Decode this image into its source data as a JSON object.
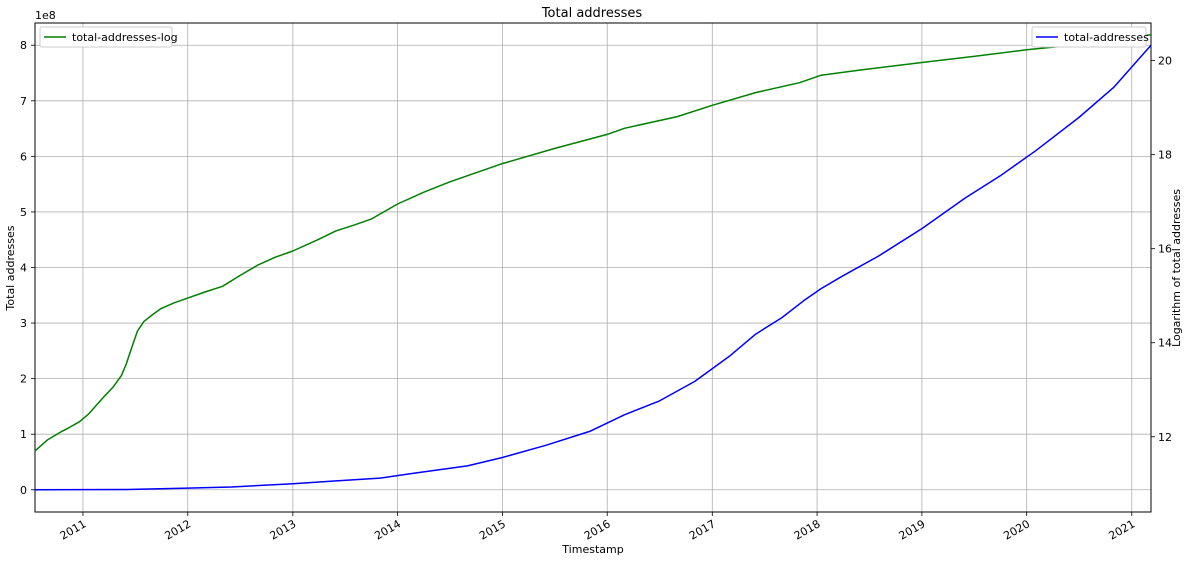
{
  "chart_data": {
    "type": "line",
    "title": "Total addresses",
    "xlabel": "Timestamp",
    "ylabel_left": "Total addresses",
    "ylabel_right": "Logarithm of total addresses",
    "y_left_exponent_label": "1e8",
    "x_range": [
      "2010-07-18",
      "2021-03-09"
    ],
    "x_ticks": [
      "2011",
      "2012",
      "2013",
      "2014",
      "2015",
      "2016",
      "2017",
      "2018",
      "2019",
      "2020",
      "2021"
    ],
    "y_left_ticks": [
      "0",
      "1",
      "2",
      "3",
      "4",
      "5",
      "6",
      "7",
      "8"
    ],
    "y_left_range": [
      -0.4,
      8.4
    ],
    "y_right_ticks": [
      "12",
      "14",
      "16",
      "18",
      "20"
    ],
    "y_right_range": [
      10.4,
      20.8
    ],
    "grid": true,
    "legend_left": "top-left",
    "legend_right": "top-right",
    "colors": {
      "log_series": "#008000",
      "linear_series": "#0000ff"
    },
    "series": [
      {
        "name": "total-addresses-log",
        "axis": "right",
        "color": "#008000",
        "points": [
          [
            "2010-07-18",
            11.7
          ],
          [
            "2010-09-01",
            11.94
          ],
          [
            "2010-10-15",
            12.1
          ],
          [
            "2010-11-15",
            12.2
          ],
          [
            "2010-12-20",
            12.32
          ],
          [
            "2011-01-20",
            12.48
          ],
          [
            "2011-02-15",
            12.66
          ],
          [
            "2011-03-15",
            12.85
          ],
          [
            "2011-04-15",
            13.05
          ],
          [
            "2011-05-15",
            13.3
          ],
          [
            "2011-06-01",
            13.55
          ],
          [
            "2011-06-20",
            13.9
          ],
          [
            "2011-07-10",
            14.25
          ],
          [
            "2011-08-01",
            14.45
          ],
          [
            "2011-09-01",
            14.6
          ],
          [
            "2011-10-01",
            14.73
          ],
          [
            "2011-11-15",
            14.85
          ],
          [
            "2012-01-01",
            14.95
          ],
          [
            "2012-03-01",
            15.08
          ],
          [
            "2012-05-01",
            15.2
          ],
          [
            "2012-07-01",
            15.43
          ],
          [
            "2012-09-01",
            15.65
          ],
          [
            "2012-11-01",
            15.82
          ],
          [
            "2013-01-01",
            15.95
          ],
          [
            "2013-04-01",
            16.2
          ],
          [
            "2013-06-01",
            16.38
          ],
          [
            "2013-08-01",
            16.5
          ],
          [
            "2013-10-01",
            16.63
          ],
          [
            "2014-01-01",
            16.95
          ],
          [
            "2014-04-01",
            17.2
          ],
          [
            "2014-07-01",
            17.42
          ],
          [
            "2015-01-01",
            17.81
          ],
          [
            "2015-07-01",
            18.13
          ],
          [
            "2016-01-01",
            18.43
          ],
          [
            "2016-03-01",
            18.56
          ],
          [
            "2016-09-01",
            18.81
          ],
          [
            "2017-01-01",
            19.05
          ],
          [
            "2017-06-01",
            19.32
          ],
          [
            "2017-11-01",
            19.53
          ],
          [
            "2018-01-15",
            19.69
          ],
          [
            "2018-06-01",
            19.8
          ],
          [
            "2019-01-01",
            19.96
          ],
          [
            "2019-07-01",
            20.09
          ],
          [
            "2020-01-01",
            20.23
          ],
          [
            "2020-07-01",
            20.34
          ],
          [
            "2021-01-01",
            20.5
          ],
          [
            "2021-03-09",
            20.55
          ]
        ]
      },
      {
        "name": "total-addresses",
        "axis": "left",
        "color": "#0000ff",
        "points": [
          [
            "2010-07-18",
            0.0
          ],
          [
            "2011-06-01",
            0.005
          ],
          [
            "2012-01-01",
            0.03
          ],
          [
            "2012-06-01",
            0.05
          ],
          [
            "2013-01-01",
            0.11
          ],
          [
            "2013-06-01",
            0.16
          ],
          [
            "2013-11-01",
            0.21
          ],
          [
            "2014-03-01",
            0.3
          ],
          [
            "2014-09-01",
            0.43
          ],
          [
            "2015-01-01",
            0.58
          ],
          [
            "2015-06-01",
            0.8
          ],
          [
            "2015-11-01",
            1.05
          ],
          [
            "2016-03-01",
            1.35
          ],
          [
            "2016-07-01",
            1.6
          ],
          [
            "2016-11-01",
            1.95
          ],
          [
            "2017-03-01",
            2.4
          ],
          [
            "2017-06-01",
            2.8
          ],
          [
            "2017-09-01",
            3.1
          ],
          [
            "2017-11-15",
            3.4
          ],
          [
            "2018-01-15",
            3.62
          ],
          [
            "2018-04-01",
            3.85
          ],
          [
            "2018-08-01",
            4.2
          ],
          [
            "2019-01-01",
            4.7
          ],
          [
            "2019-06-01",
            5.25
          ],
          [
            "2019-10-01",
            5.65
          ],
          [
            "2020-02-01",
            6.1
          ],
          [
            "2020-07-01",
            6.7
          ],
          [
            "2020-11-01",
            7.25
          ],
          [
            "2021-03-09",
            8.0
          ]
        ]
      }
    ]
  }
}
